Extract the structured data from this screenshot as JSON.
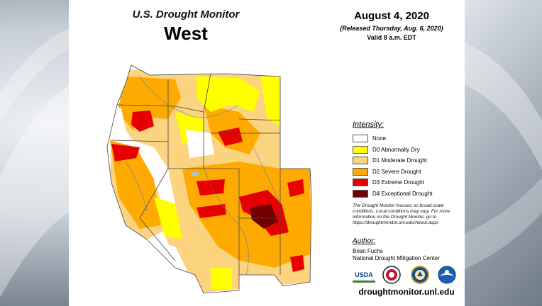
{
  "header": {
    "title": "U.S. Drought Monitor",
    "region": "West",
    "date": "August 4, 2020",
    "released": "(Released Thursday, Aug. 6, 2020)",
    "valid": "Valid 8 a.m. EDT"
  },
  "legend": {
    "title": "Intensity:",
    "items": [
      {
        "label": "None",
        "color": "#ffffff"
      },
      {
        "label": "D0 Abnormally Dry",
        "color": "#ffff00"
      },
      {
        "label": "D1 Moderate Drought",
        "color": "#fcd37f"
      },
      {
        "label": "D2 Severe Drought",
        "color": "#ffaa00"
      },
      {
        "label": "D3 Extreme Drought",
        "color": "#e60000"
      },
      {
        "label": "D4 Exceptional Drought",
        "color": "#730000"
      }
    ]
  },
  "note": "The Drought Monitor focuses on broad-scale conditions. Local conditions may vary. For more information on the Drought Monitor, go to https://droughtmonitor.unl.edu/About.aspx",
  "author": {
    "title": "Author:",
    "name": "Brian Fuchs",
    "org": "National Drought Mitigation Center"
  },
  "logos": {
    "usda_text": "USDA",
    "items": [
      "usda-logo",
      "ndmc-logo",
      "commerce-logo",
      "noaa-logo"
    ]
  },
  "url": "droughtmonitor.unl.edu"
}
